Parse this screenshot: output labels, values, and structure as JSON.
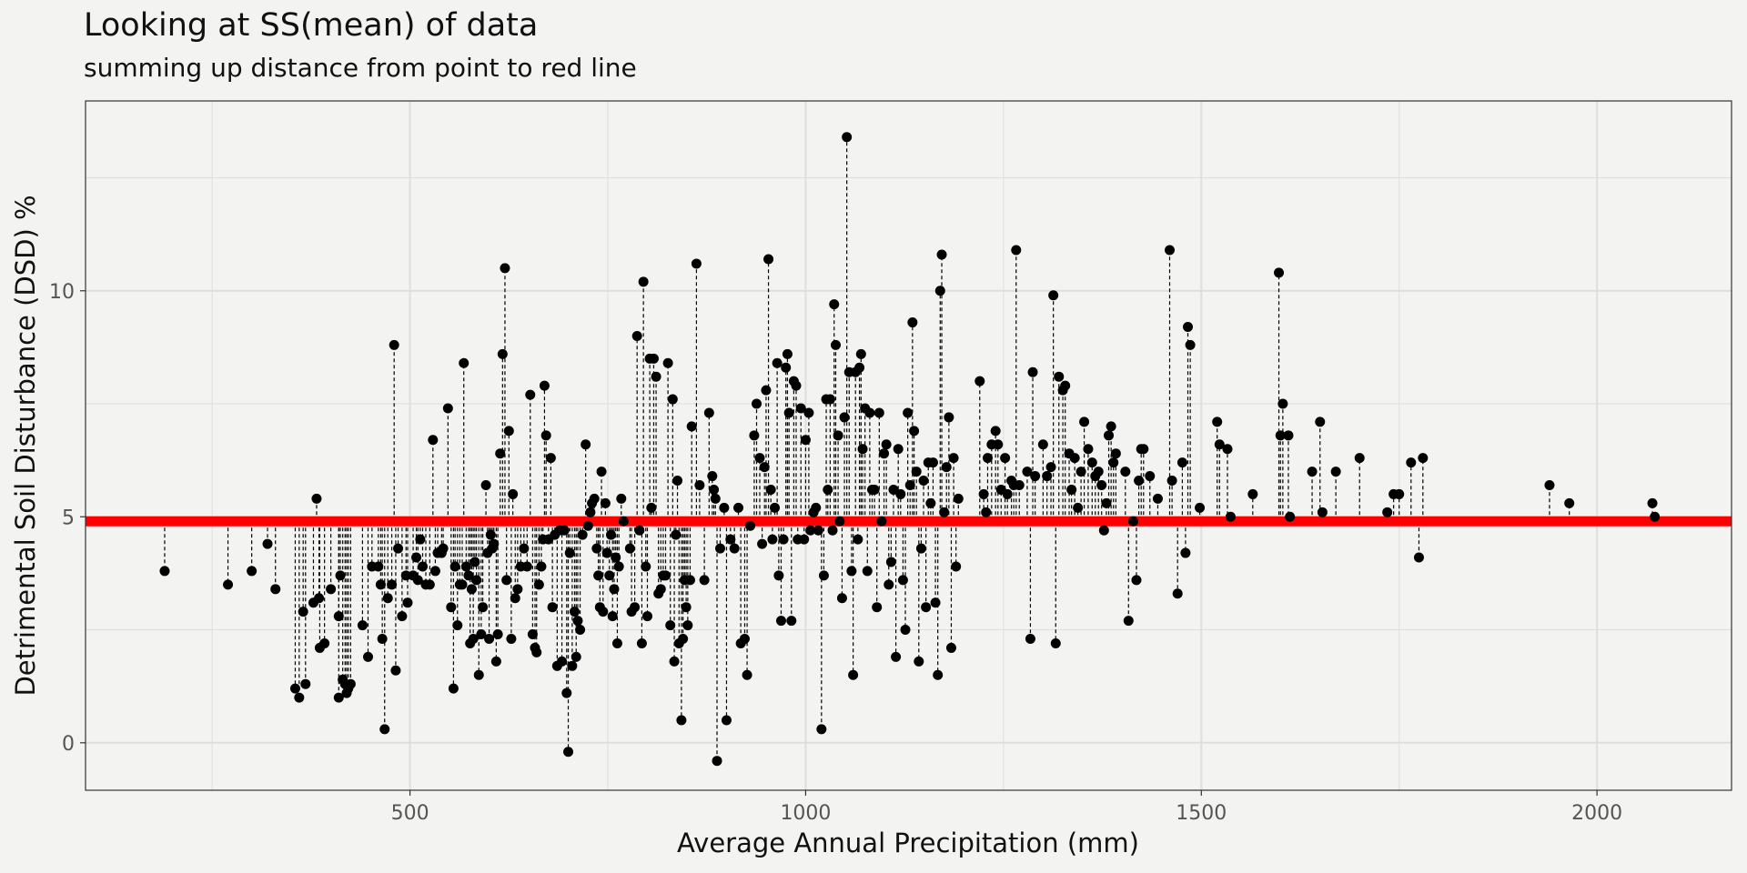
{
  "chart_data": {
    "type": "scatter",
    "title": "Looking at SS(mean) of data",
    "subtitle": "summing up distance from point to red line",
    "xlabel": "Average Annual Precipitation (mm)",
    "ylabel": "Detrimental Soil Disturbance (DSD) %",
    "xlim": [
      90,
      2170
    ],
    "ylim": [
      -1.05,
      14.2
    ],
    "x_ticks": [
      500,
      1000,
      1500,
      2000
    ],
    "y_ticks": [
      0,
      5,
      10
    ],
    "grid": true,
    "mean_line": {
      "value": 4.9,
      "color": "#ff0000"
    },
    "colors": {
      "points": "#000000",
      "mean_line": "#ff0000",
      "panel_border": "#333333",
      "grid": "#dedede"
    },
    "points": [
      [
        190,
        3.8
      ],
      [
        270,
        3.5
      ],
      [
        300,
        3.8
      ],
      [
        320,
        4.4
      ],
      [
        330,
        3.4
      ],
      [
        355,
        1.2
      ],
      [
        360,
        1.0
      ],
      [
        365,
        2.9
      ],
      [
        368,
        1.3
      ],
      [
        378,
        3.1
      ],
      [
        382,
        5.4
      ],
      [
        385,
        3.2
      ],
      [
        386,
        2.1
      ],
      [
        392,
        2.2
      ],
      [
        400,
        3.4
      ],
      [
        410,
        1.0
      ],
      [
        410,
        2.8
      ],
      [
        412,
        3.7
      ],
      [
        415,
        1.4
      ],
      [
        418,
        1.3
      ],
      [
        420,
        1.1
      ],
      [
        422,
        1.2
      ],
      [
        425,
        1.3
      ],
      [
        440,
        2.6
      ],
      [
        447,
        1.9
      ],
      [
        452,
        3.9
      ],
      [
        460,
        3.9
      ],
      [
        463,
        3.5
      ],
      [
        465,
        2.3
      ],
      [
        468,
        0.3
      ],
      [
        472,
        3.2
      ],
      [
        477,
        3.5
      ],
      [
        480,
        8.8
      ],
      [
        482,
        1.6
      ],
      [
        485,
        4.3
      ],
      [
        490,
        2.8
      ],
      [
        495,
        3.7
      ],
      [
        497,
        3.1
      ],
      [
        504,
        3.7
      ],
      [
        508,
        4.1
      ],
      [
        510,
        3.6
      ],
      [
        513,
        4.5
      ],
      [
        516,
        3.9
      ],
      [
        520,
        3.5
      ],
      [
        525,
        3.5
      ],
      [
        529,
        6.7
      ],
      [
        532,
        3.8
      ],
      [
        535,
        4.2
      ],
      [
        540,
        4.2
      ],
      [
        542,
        4.3
      ],
      [
        548,
        7.4
      ],
      [
        552,
        3.0
      ],
      [
        555,
        1.2
      ],
      [
        557,
        3.9
      ],
      [
        560,
        2.6
      ],
      [
        563,
        3.5
      ],
      [
        566,
        3.5
      ],
      [
        568,
        8.4
      ],
      [
        571,
        3.9
      ],
      [
        574,
        3.7
      ],
      [
        576,
        2.2
      ],
      [
        578,
        3.4
      ],
      [
        580,
        2.3
      ],
      [
        582,
        4.0
      ],
      [
        584,
        3.6
      ],
      [
        587,
        1.5
      ],
      [
        590,
        2.4
      ],
      [
        592,
        3.0
      ],
      [
        596,
        5.7
      ],
      [
        598,
        4.2
      ],
      [
        600,
        2.3
      ],
      [
        602,
        4.6
      ],
      [
        604,
        4.3
      ],
      [
        606,
        4.4
      ],
      [
        609,
        1.8
      ],
      [
        611,
        2.4
      ],
      [
        614,
        6.4
      ],
      [
        617,
        8.6
      ],
      [
        620,
        10.5
      ],
      [
        622,
        3.6
      ],
      [
        625,
        6.9
      ],
      [
        628,
        2.3
      ],
      [
        630,
        5.5
      ],
      [
        633,
        3.2
      ],
      [
        636,
        3.4
      ],
      [
        640,
        3.9
      ],
      [
        644,
        4.3
      ],
      [
        648,
        3.9
      ],
      [
        652,
        7.7
      ],
      [
        655,
        2.4
      ],
      [
        658,
        2.1
      ],
      [
        660,
        2.0
      ],
      [
        663,
        3.5
      ],
      [
        666,
        3.9
      ],
      [
        668,
        4.5
      ],
      [
        670,
        7.9
      ],
      [
        672,
        6.8
      ],
      [
        675,
        4.5
      ],
      [
        678,
        6.3
      ],
      [
        680,
        3.0
      ],
      [
        683,
        4.6
      ],
      [
        686,
        1.7
      ],
      [
        689,
        4.7
      ],
      [
        692,
        1.8
      ],
      [
        695,
        4.7
      ],
      [
        698,
        1.1
      ],
      [
        700,
        -0.2
      ],
      [
        702,
        4.2
      ],
      [
        705,
        1.7
      ],
      [
        708,
        2.9
      ],
      [
        710,
        1.9
      ],
      [
        712,
        2.7
      ],
      [
        715,
        2.5
      ],
      [
        718,
        4.6
      ],
      [
        722,
        6.6
      ],
      [
        725,
        4.8
      ],
      [
        728,
        5.1
      ],
      [
        730,
        5.3
      ],
      [
        733,
        5.4
      ],
      [
        736,
        4.3
      ],
      [
        738,
        3.7
      ],
      [
        740,
        3.0
      ],
      [
        742,
        6.0
      ],
      [
        744,
        2.9
      ],
      [
        747,
        5.3
      ],
      [
        749,
        4.2
      ],
      [
        752,
        3.7
      ],
      [
        754,
        4.6
      ],
      [
        756,
        2.8
      ],
      [
        758,
        3.4
      ],
      [
        760,
        4.1
      ],
      [
        762,
        2.2
      ],
      [
        764,
        3.9
      ],
      [
        767,
        5.4
      ],
      [
        770,
        4.9
      ],
      [
        778,
        4.3
      ],
      [
        780,
        2.9
      ],
      [
        784,
        3.0
      ],
      [
        787,
        9.0
      ],
      [
        790,
        4.7
      ],
      [
        793,
        2.2
      ],
      [
        795,
        10.2
      ],
      [
        798,
        3.9
      ],
      [
        800,
        2.8
      ],
      [
        803,
        8.5
      ],
      [
        805,
        5.2
      ],
      [
        808,
        8.5
      ],
      [
        811,
        8.1
      ],
      [
        814,
        3.3
      ],
      [
        817,
        3.4
      ],
      [
        820,
        3.7
      ],
      [
        823,
        3.7
      ],
      [
        826,
        8.4
      ],
      [
        829,
        2.6
      ],
      [
        832,
        7.6
      ],
      [
        834,
        1.8
      ],
      [
        836,
        4.6
      ],
      [
        838,
        5.8
      ],
      [
        840,
        2.2
      ],
      [
        843,
        0.5
      ],
      [
        845,
        2.3
      ],
      [
        847,
        3.6
      ],
      [
        849,
        3.0
      ],
      [
        851,
        2.6
      ],
      [
        854,
        3.6
      ],
      [
        856,
        7.0
      ],
      [
        862,
        10.6
      ],
      [
        866,
        5.7
      ],
      [
        872,
        3.6
      ],
      [
        878,
        7.3
      ],
      [
        882,
        5.9
      ],
      [
        884,
        5.6
      ],
      [
        886,
        5.4
      ],
      [
        888,
        -0.4
      ],
      [
        892,
        4.3
      ],
      [
        897,
        5.2
      ],
      [
        900,
        0.5
      ],
      [
        905,
        4.5
      ],
      [
        910,
        4.3
      ],
      [
        915,
        5.2
      ],
      [
        918,
        2.2
      ],
      [
        923,
        2.3
      ],
      [
        926,
        1.5
      ],
      [
        930,
        4.8
      ],
      [
        935,
        6.8
      ],
      [
        938,
        7.5
      ],
      [
        942,
        6.3
      ],
      [
        945,
        4.4
      ],
      [
        948,
        6.1
      ],
      [
        950,
        7.8
      ],
      [
        953,
        10.7
      ],
      [
        956,
        5.6
      ],
      [
        958,
        4.5
      ],
      [
        961,
        5.2
      ],
      [
        964,
        8.4
      ],
      [
        966,
        3.7
      ],
      [
        969,
        2.7
      ],
      [
        972,
        4.5
      ],
      [
        975,
        8.3
      ],
      [
        977,
        8.6
      ],
      [
        979,
        7.3
      ],
      [
        982,
        2.7
      ],
      [
        985,
        8.0
      ],
      [
        988,
        7.9
      ],
      [
        990,
        4.5
      ],
      [
        994,
        7.4
      ],
      [
        998,
        4.5
      ],
      [
        1000,
        6.7
      ],
      [
        1004,
        7.3
      ],
      [
        1006,
        4.7
      ],
      [
        1010,
        5.1
      ],
      [
        1013,
        5.2
      ],
      [
        1016,
        4.7
      ],
      [
        1020,
        0.3
      ],
      [
        1023,
        3.7
      ],
      [
        1026,
        7.6
      ],
      [
        1028,
        5.6
      ],
      [
        1031,
        7.6
      ],
      [
        1034,
        4.7
      ],
      [
        1036,
        9.7
      ],
      [
        1038,
        8.8
      ],
      [
        1041,
        6.8
      ],
      [
        1043,
        4.9
      ],
      [
        1046,
        3.2
      ],
      [
        1049,
        7.2
      ],
      [
        1052,
        13.4
      ],
      [
        1055,
        8.2
      ],
      [
        1058,
        3.8
      ],
      [
        1060,
        1.5
      ],
      [
        1063,
        8.2
      ],
      [
        1066,
        4.5
      ],
      [
        1068,
        8.3
      ],
      [
        1070,
        8.6
      ],
      [
        1072,
        6.5
      ],
      [
        1075,
        7.4
      ],
      [
        1078,
        3.8
      ],
      [
        1081,
        7.3
      ],
      [
        1084,
        5.6
      ],
      [
        1087,
        5.6
      ],
      [
        1090,
        3.0
      ],
      [
        1093,
        7.3
      ],
      [
        1096,
        4.9
      ],
      [
        1099,
        6.4
      ],
      [
        1102,
        6.6
      ],
      [
        1105,
        3.5
      ],
      [
        1108,
        4.0
      ],
      [
        1111,
        5.6
      ],
      [
        1114,
        1.9
      ],
      [
        1117,
        6.5
      ],
      [
        1120,
        5.5
      ],
      [
        1123,
        3.6
      ],
      [
        1126,
        2.5
      ],
      [
        1129,
        7.3
      ],
      [
        1132,
        5.7
      ],
      [
        1135,
        9.3
      ],
      [
        1137,
        6.9
      ],
      [
        1140,
        6.0
      ],
      [
        1143,
        1.8
      ],
      [
        1146,
        4.3
      ],
      [
        1149,
        5.8
      ],
      [
        1152,
        3.0
      ],
      [
        1155,
        6.2
      ],
      [
        1158,
        5.3
      ],
      [
        1161,
        6.2
      ],
      [
        1164,
        3.1
      ],
      [
        1167,
        1.5
      ],
      [
        1170,
        10.0
      ],
      [
        1172,
        10.8
      ],
      [
        1175,
        5.1
      ],
      [
        1178,
        6.1
      ],
      [
        1181,
        7.2
      ],
      [
        1184,
        2.1
      ],
      [
        1187,
        6.3
      ],
      [
        1190,
        3.9
      ],
      [
        1193,
        5.4
      ],
      [
        1220,
        8.0
      ],
      [
        1225,
        5.5
      ],
      [
        1228,
        5.1
      ],
      [
        1230,
        6.3
      ],
      [
        1235,
        6.6
      ],
      [
        1240,
        6.9
      ],
      [
        1243,
        6.6
      ],
      [
        1247,
        5.6
      ],
      [
        1252,
        6.3
      ],
      [
        1255,
        5.5
      ],
      [
        1260,
        5.8
      ],
      [
        1263,
        5.7
      ],
      [
        1266,
        10.9
      ],
      [
        1270,
        5.7
      ],
      [
        1280,
        6.0
      ],
      [
        1284,
        2.3
      ],
      [
        1287,
        8.2
      ],
      [
        1290,
        5.9
      ],
      [
        1300,
        6.6
      ],
      [
        1305,
        5.9
      ],
      [
        1310,
        6.1
      ],
      [
        1313,
        9.9
      ],
      [
        1316,
        2.2
      ],
      [
        1320,
        8.1
      ],
      [
        1325,
        7.8
      ],
      [
        1328,
        7.9
      ],
      [
        1333,
        6.4
      ],
      [
        1336,
        5.6
      ],
      [
        1340,
        6.3
      ],
      [
        1344,
        5.2
      ],
      [
        1348,
        6.0
      ],
      [
        1352,
        7.1
      ],
      [
        1357,
        6.5
      ],
      [
        1362,
        6.2
      ],
      [
        1366,
        5.9
      ],
      [
        1370,
        6.0
      ],
      [
        1374,
        5.7
      ],
      [
        1377,
        4.7
      ],
      [
        1380,
        5.3
      ],
      [
        1383,
        6.8
      ],
      [
        1386,
        7.0
      ],
      [
        1389,
        6.2
      ],
      [
        1392,
        6.4
      ],
      [
        1404,
        6.0
      ],
      [
        1408,
        2.7
      ],
      [
        1414,
        4.9
      ],
      [
        1418,
        3.6
      ],
      [
        1421,
        5.8
      ],
      [
        1424,
        6.5
      ],
      [
        1427,
        6.5
      ],
      [
        1435,
        5.9
      ],
      [
        1445,
        5.4
      ],
      [
        1460,
        10.9
      ],
      [
        1463,
        5.8
      ],
      [
        1470,
        3.3
      ],
      [
        1476,
        6.2
      ],
      [
        1480,
        4.2
      ],
      [
        1483,
        9.2
      ],
      [
        1486,
        8.8
      ],
      [
        1498,
        5.2
      ],
      [
        1520,
        7.1
      ],
      [
        1523,
        6.6
      ],
      [
        1533,
        6.5
      ],
      [
        1537,
        5.0
      ],
      [
        1565,
        5.5
      ],
      [
        1598,
        10.4
      ],
      [
        1600,
        6.8
      ],
      [
        1603,
        7.5
      ],
      [
        1610,
        6.8
      ],
      [
        1612,
        5.0
      ],
      [
        1640,
        6.0
      ],
      [
        1650,
        7.1
      ],
      [
        1653,
        5.1
      ],
      [
        1670,
        6.0
      ],
      [
        1700,
        6.3
      ],
      [
        1735,
        5.1
      ],
      [
        1743,
        5.5
      ],
      [
        1750,
        5.5
      ],
      [
        1765,
        6.2
      ],
      [
        1775,
        4.1
      ],
      [
        1780,
        6.3
      ],
      [
        1940,
        5.7
      ],
      [
        1965,
        5.3
      ],
      [
        2070,
        5.3
      ],
      [
        2073,
        5.0
      ]
    ]
  }
}
